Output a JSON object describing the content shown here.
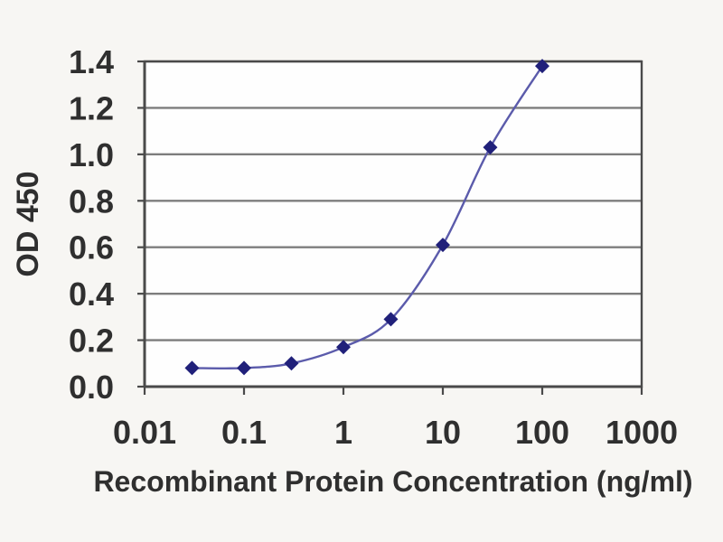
{
  "chart_data": {
    "type": "line",
    "title": "",
    "xlabel": "Recombinant Protein Concentration (ng/ml)",
    "ylabel": "OD 450",
    "x_scale": "log",
    "xlim": [
      0.01,
      1000
    ],
    "ylim": [
      0,
      1.4
    ],
    "x_tick_values": [
      0.01,
      0.1,
      1,
      10,
      100,
      1000
    ],
    "x_tick_labels": [
      "0.01",
      "0.1",
      "1",
      "10",
      "100",
      "1000"
    ],
    "y_tick_values": [
      0.0,
      0.2,
      0.4,
      0.6,
      0.8,
      1.0,
      1.2,
      1.4
    ],
    "y_tick_labels": [
      "0.0",
      "0.2",
      "0.4",
      "0.6",
      "0.8",
      "1.0",
      "1.2",
      "1.4"
    ],
    "grid": "horizontal",
    "legend": "none",
    "marker": "diamond",
    "series": [
      {
        "name": "OD 450",
        "x": [
          0.03,
          0.1,
          0.3,
          1,
          3,
          10,
          30,
          100
        ],
        "y": [
          0.08,
          0.08,
          0.1,
          0.17,
          0.29,
          0.61,
          1.03,
          1.38
        ]
      }
    ],
    "colors": {
      "line": "#5b5bab",
      "marker": "#20207a",
      "grid": "#7d7d7d",
      "frame": "#4a4a4a",
      "text": "#2f2f2f",
      "plot_bg": "#fefefe",
      "page_bg": "#f7f6f3"
    }
  }
}
